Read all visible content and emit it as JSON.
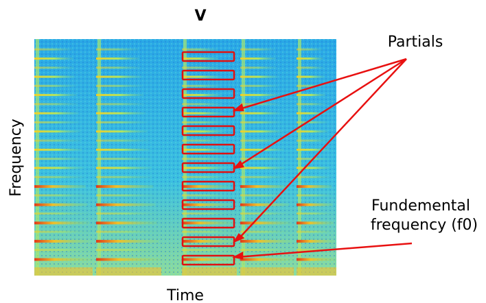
{
  "title": "V",
  "x_label": "Time",
  "y_label": "Frequency",
  "annotations": {
    "partials": "Partials",
    "fundamental": [
      "Fundemental",
      "frequency (f0)"
    ]
  }
}
